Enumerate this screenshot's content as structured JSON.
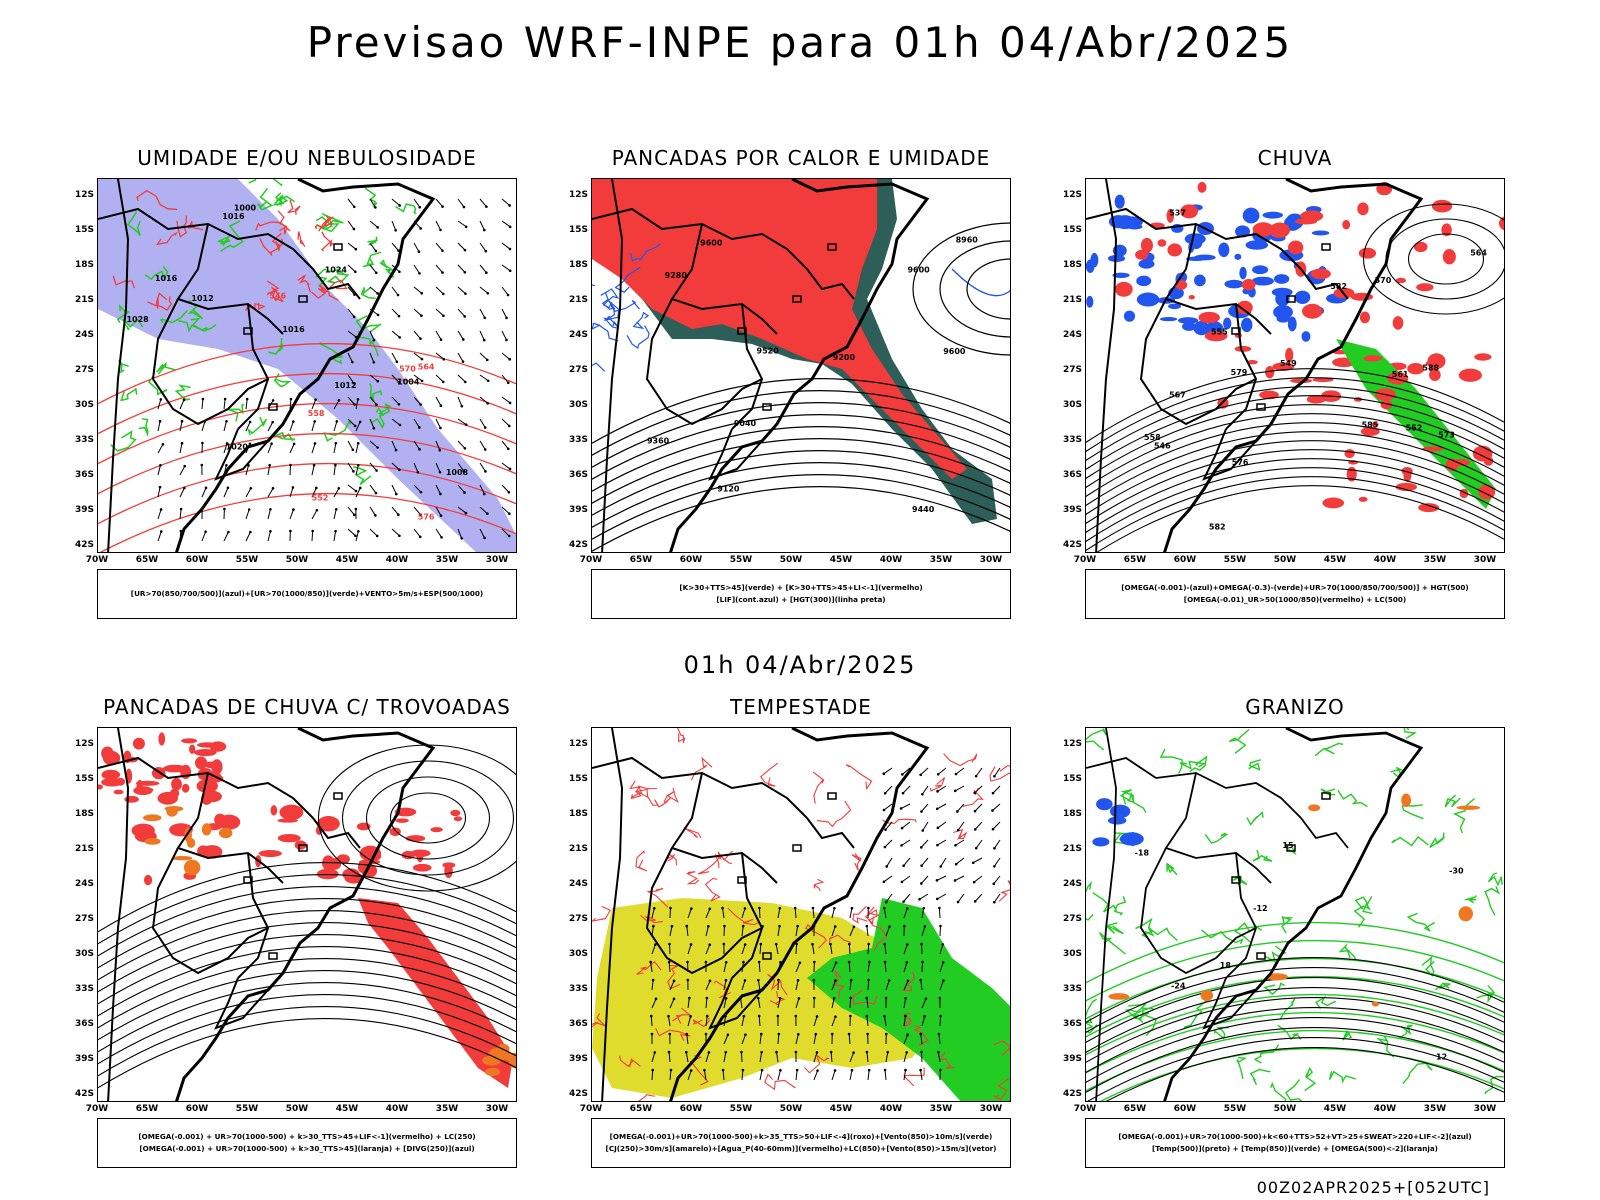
{
  "title": "Previsao WRF-INPE  para 01h 04/Abr/2025",
  "mid_date": "01h 04/Abr/2025",
  "footer": "00Z02APR2025+[052UTC]",
  "lat_labels": [
    "12S",
    "15S",
    "18S",
    "21S",
    "24S",
    "27S",
    "30S",
    "33S",
    "36S",
    "39S",
    "42S"
  ],
  "lon_labels": [
    "70W",
    "65W",
    "60W",
    "55W",
    "50W",
    "45W",
    "40W",
    "35W",
    "30W"
  ],
  "colors": {
    "red": "#f23c3c",
    "green": "#22cc22",
    "blue": "#2255ee",
    "lavender": "#a9a9ef",
    "dark_teal": "#2e5e58",
    "yellow": "#e0dc2e",
    "orange": "#ee7722",
    "dark_green": "#118811"
  },
  "panels": [
    {
      "title": "UMIDADE E/OU NEBULOSIDADE",
      "legend": [
        "[UR>70(850/700/500)](azul)+[UR>70(1000/850)](verde)+VENTO>5m/s+ESP(500/1000)"
      ],
      "labels": [
        "1012",
        "1016",
        "1016",
        "1016",
        "1020",
        "1024",
        "1028",
        "1012",
        "1008",
        "1004",
        "1000",
        "570",
        "576",
        "564",
        "558",
        "552",
        "546"
      ]
    },
    {
      "title": "PANCADAS POR CALOR E UMIDADE",
      "legend": [
        "[K>30+TTS>45](verde) + [K>30+TTS>45+LI<-1](vermelho)",
        "[LIF](cont.azul) + [HGT(300)](linha preta)"
      ],
      "labels": [
        "9600",
        "9600",
        "9520",
        "9440",
        "9360",
        "9280",
        "9200",
        "9120",
        "9040",
        "8960",
        "9600"
      ]
    },
    {
      "title": "CHUVA",
      "legend": [
        "[OMEGA(-0.001)-(azul)+OMEGA(-0.3)-(verde)+UR>70(1000/850/700/500)] + HGT(500)",
        "[OMEGA(-0.01)_UR>50(1000/850)(vermelho) + LC(500)"
      ],
      "labels": [
        "582",
        "585",
        "579",
        "576",
        "573",
        "570",
        "567",
        "564",
        "561",
        "558",
        "555",
        "552",
        "549",
        "546",
        "537",
        "582",
        "588"
      ]
    },
    {
      "title": "PANCADAS DE CHUVA C/ TROVOADAS",
      "legend": [
        "[OMEGA(-0.001) + UR>70(1000-500) + k>30_TTS>45+LIF<-1](vermelho) + LC(250)",
        "[OMEGA(-0.001) + UR>70(1000-500) + k>30_TTS>45](laranja) + [DIVG(250)](azul)"
      ],
      "labels": []
    },
    {
      "title": "TEMPESTADE",
      "legend": [
        "[OMEGA(-0.001)+UR>70(1000-500)+k>35_TTS>50+LIF<-4](roxo)+[Vento(850)>10m/s](verde)",
        "[CJ(250)>30m/s](amarelo)+[Agua_P(40-60mm)](vermelho)+LC(850)+[Vento(850)>15m/s](vetor)"
      ],
      "labels": []
    },
    {
      "title": "GRANIZO",
      "legend": [
        "[OMEGA(-0.001)+UR>70(1000-500)+k<60+TTS>52+VT>25+SWEAT>220+LIF<-2](azul)",
        "[Temp(500)](preto) + [Temp(850)](verde) + [OMEGA(500)<-2](laranja)"
      ],
      "labels": [
        "-12",
        "-18",
        "-24",
        "-30",
        "18",
        "15",
        "12"
      ]
    }
  ]
}
